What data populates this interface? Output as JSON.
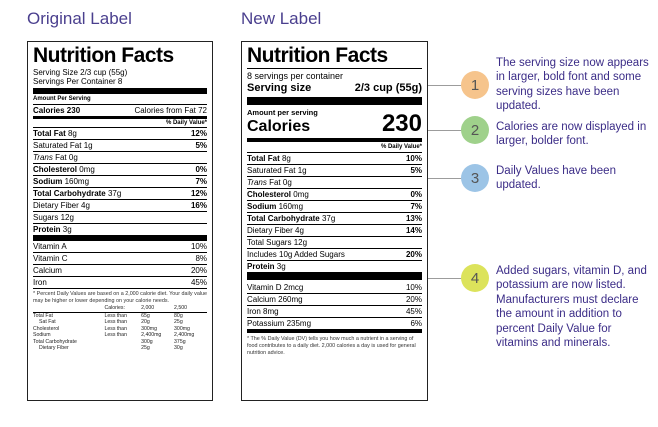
{
  "headings": {
    "original": "Original Label",
    "new": "New Label"
  },
  "original": {
    "title": "Nutrition Facts",
    "serving_size": "Serving Size 2/3 cup (55g)",
    "servings_per_container": "Servings Per Container 8",
    "amount_per_serving": "Amount Per Serving",
    "calories": "Calories 230",
    "calories_from_fat": "Calories from Fat 72",
    "dv_header": "% Daily Value*",
    "nutrients": [
      {
        "label": "Total Fat",
        "amt": "8g",
        "dv": "12%"
      },
      {
        "label": "Saturated Fat",
        "amt": "1g",
        "dv": "5%"
      },
      {
        "label": "Trans",
        "amt": "Fat 0g",
        "dv": ""
      },
      {
        "label": "Cholesterol",
        "amt": "0mg",
        "dv": "0%"
      },
      {
        "label": "Sodium",
        "amt": "160mg",
        "dv": "7%"
      },
      {
        "label": "Total Carbohydrate",
        "amt": "37g",
        "dv": "12%"
      },
      {
        "label": "Dietary Fiber",
        "amt": "4g",
        "dv": "16%"
      },
      {
        "label": "Sugars",
        "amt": "12g",
        "dv": ""
      },
      {
        "label": "Protein",
        "amt": "3g",
        "dv": ""
      }
    ],
    "vitamins": [
      {
        "label": "Vitamin A",
        "dv": "10%"
      },
      {
        "label": "Vitamin C",
        "dv": "8%"
      },
      {
        "label": "Calcium",
        "dv": "20%"
      },
      {
        "label": "Iron",
        "dv": "45%"
      }
    ],
    "footnote": "* Percent Daily Values are based on a 2,000 calorie diet. Your daily value may be higher or lower depending on your calorie needs.",
    "table": {
      "header": [
        "",
        "Calories:",
        "2,000",
        "2,500"
      ],
      "rows": [
        [
          "Total Fat",
          "Less than",
          "65g",
          "80g"
        ],
        [
          "Sat Fat",
          "Less than",
          "20g",
          "25g"
        ],
        [
          "Cholesterol",
          "Less than",
          "300mg",
          "300mg"
        ],
        [
          "Sodium",
          "Less than",
          "2,400mg",
          "2,400mg"
        ],
        [
          "Total Carbohydrate",
          "",
          "300g",
          "375g"
        ],
        [
          "Dietary Fiber",
          "",
          "25g",
          "30g"
        ]
      ]
    }
  },
  "new": {
    "title": "Nutrition Facts",
    "servings": "8 servings per container",
    "serving_size_label": "Serving size",
    "serving_size_value": "2/3 cup (55g)",
    "amount_per_serving": "Amount per serving",
    "calories_label": "Calories",
    "calories_value": "230",
    "dv_header": "% Daily Value*",
    "nutrients": [
      {
        "label": "Total Fat",
        "amt": "8g",
        "dv": "10%"
      },
      {
        "label": "Saturated Fat",
        "amt": "1g",
        "dv": "5%"
      },
      {
        "label": "Trans",
        "amt": "Fat 0g",
        "dv": ""
      },
      {
        "label": "Cholesterol",
        "amt": "0mg",
        "dv": "0%"
      },
      {
        "label": "Sodium",
        "amt": "160mg",
        "dv": "7%"
      },
      {
        "label": "Total Carbohydrate",
        "amt": "37g",
        "dv": "13%"
      },
      {
        "label": "Dietary Fiber",
        "amt": "4g",
        "dv": "14%"
      },
      {
        "label": "Total Sugars",
        "amt": "12g",
        "dv": ""
      },
      {
        "label": "Includes 10g Added Sugars",
        "amt": "",
        "dv": "20%"
      },
      {
        "label": "Protein",
        "amt": "3g",
        "dv": ""
      }
    ],
    "vitamins": [
      {
        "label": "Vitamin D 2mcg",
        "dv": "10%"
      },
      {
        "label": "Calcium 260mg",
        "dv": "20%"
      },
      {
        "label": "Iron 8mg",
        "dv": "45%"
      },
      {
        "label": "Potassium 235mg",
        "dv": "6%"
      }
    ],
    "footnote": "* The % Daily Value (DV) tells you how much a nutrient in a serving of food contributes to a daily diet. 2,000 calories a day is used for general nutrition advice."
  },
  "callouts": [
    {
      "num": "1",
      "color": "#f6c48c",
      "text": "The serving size now appears in larger, bold font and some serving sizes have been updated."
    },
    {
      "num": "2",
      "color": "#9fd18b",
      "text": "Calories are now displayed in larger, bolder font."
    },
    {
      "num": "3",
      "color": "#9cc4e6",
      "text": "Daily Values have been updated."
    },
    {
      "num": "4",
      "color": "#dce35b",
      "text": "Added sugars, vitamin D, and potassium are now listed. Manufacturers must declare the amount in addition to percent Daily Value for vitamins and minerals."
    }
  ]
}
